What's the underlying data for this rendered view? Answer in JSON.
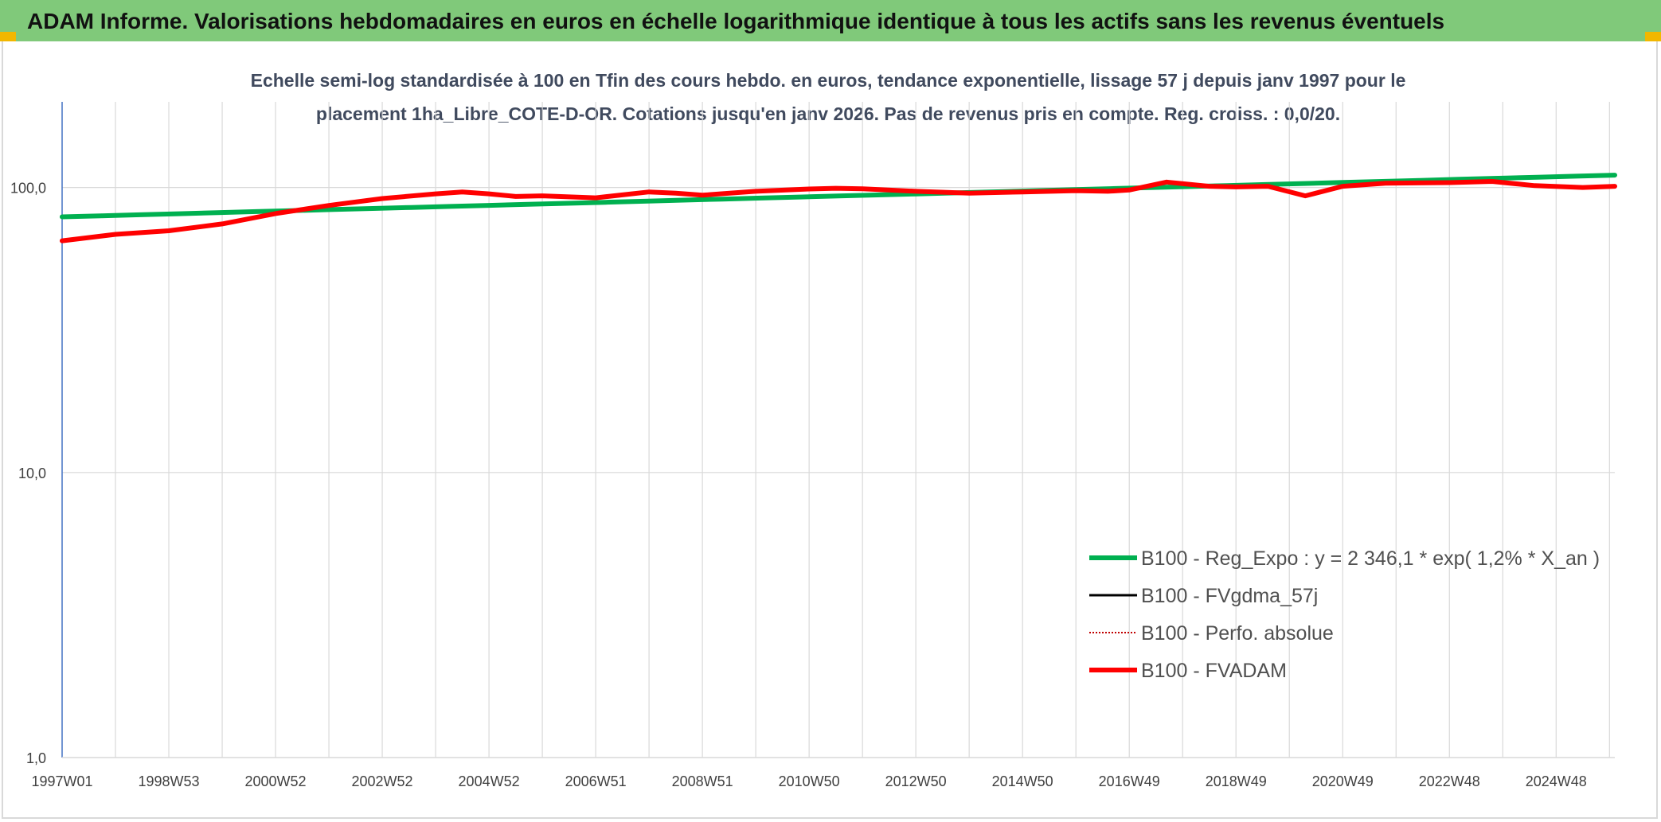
{
  "header": {
    "banner_title": "ADAM Informe. Valorisations hebdomadaires en euros en échelle logarithmique identique à tous les actifs sans les revenus éventuels"
  },
  "colors": {
    "banner": "#80c97a",
    "reg_expo": "#00b050",
    "fvgdma": "#000000",
    "perfo": "#c00000",
    "fvadam": "#ff0000",
    "grid": "#d9d9d9"
  },
  "chart_data": {
    "type": "line",
    "title": "Echelle semi-log standardisée à 100 en Tfin des cours hebdo. en euros, tendance exponentielle, lissage 57 j depuis janv 1997 pour le",
    "subtitle": "placement 1ha_Libre_COTE-D-OR. Cotations jusqu'en janv 2026. Pas de revenus pris en compte. Reg. croiss. : 0,0/20.",
    "yscale": "log",
    "ylim": [
      1,
      200
    ],
    "yticks": [
      {
        "value": 1,
        "label": "1,0"
      },
      {
        "value": 10,
        "label": "10,0"
      },
      {
        "value": 100,
        "label": "100,0"
      }
    ],
    "xlim": [
      1997.0,
      2026.1
    ],
    "xticks": [
      {
        "x": 1997.0,
        "label": "1997W01"
      },
      {
        "x": 1999.0,
        "label": "1998W53"
      },
      {
        "x": 2001.0,
        "label": "2000W52"
      },
      {
        "x": 2003.0,
        "label": "2002W52"
      },
      {
        "x": 2005.0,
        "label": "2004W52"
      },
      {
        "x": 2007.0,
        "label": "2006W51"
      },
      {
        "x": 2009.0,
        "label": "2008W51"
      },
      {
        "x": 2011.0,
        "label": "2010W50"
      },
      {
        "x": 2013.0,
        "label": "2012W50"
      },
      {
        "x": 2015.0,
        "label": "2014W50"
      },
      {
        "x": 2017.0,
        "label": "2016W49"
      },
      {
        "x": 2019.0,
        "label": "2018W49"
      },
      {
        "x": 2021.0,
        "label": "2020W49"
      },
      {
        "x": 2023.0,
        "label": "2022W48"
      },
      {
        "x": 2025.0,
        "label": "2024W48"
      }
    ],
    "grid": true,
    "legend_position": "bottom-right",
    "series": [
      {
        "name": "B100 - Reg_Expo : y = 2 346,1 * exp( 1,2% *  X_an )",
        "style": "solid-thick",
        "x": [
          1997.0,
          2026.1
        ],
        "y": [
          78.9,
          110.5
        ]
      },
      {
        "name": "B100 - FVgdma_57j",
        "style": "solid-thin",
        "x": [],
        "y": []
      },
      {
        "name": "B100 - Perfo. absolue",
        "style": "dotted",
        "x": [],
        "y": []
      },
      {
        "name": "B100 - FVADAM",
        "style": "solid-thick",
        "x": [
          1997.0,
          1998.0,
          1999.0,
          2000.0,
          2001.0,
          2002.0,
          2003.0,
          2004.0,
          2004.5,
          2005.0,
          2005.5,
          2006.0,
          2007.0,
          2008.0,
          2008.5,
          2009.0,
          2010.0,
          2011.0,
          2011.5,
          2012.0,
          2013.0,
          2014.0,
          2015.0,
          2016.0,
          2016.6,
          2017.0,
          2017.7,
          2018.5,
          2019.0,
          2019.6,
          2020.3,
          2021.0,
          2021.8,
          2023.0,
          2023.8,
          2024.6,
          2025.5,
          2026.1
        ],
        "y": [
          65.0,
          68.5,
          70.5,
          74.5,
          81.0,
          86.5,
          91.5,
          95.0,
          96.5,
          95.0,
          93.0,
          93.5,
          92.0,
          96.5,
          95.5,
          94.0,
          97.0,
          98.8,
          99.4,
          99.0,
          97.0,
          95.5,
          96.5,
          97.5,
          97.0,
          98.0,
          104.5,
          101.0,
          100.5,
          101.0,
          93.5,
          101.0,
          103.5,
          104.0,
          105.0,
          101.5,
          100.0,
          101.0
        ]
      }
    ]
  }
}
